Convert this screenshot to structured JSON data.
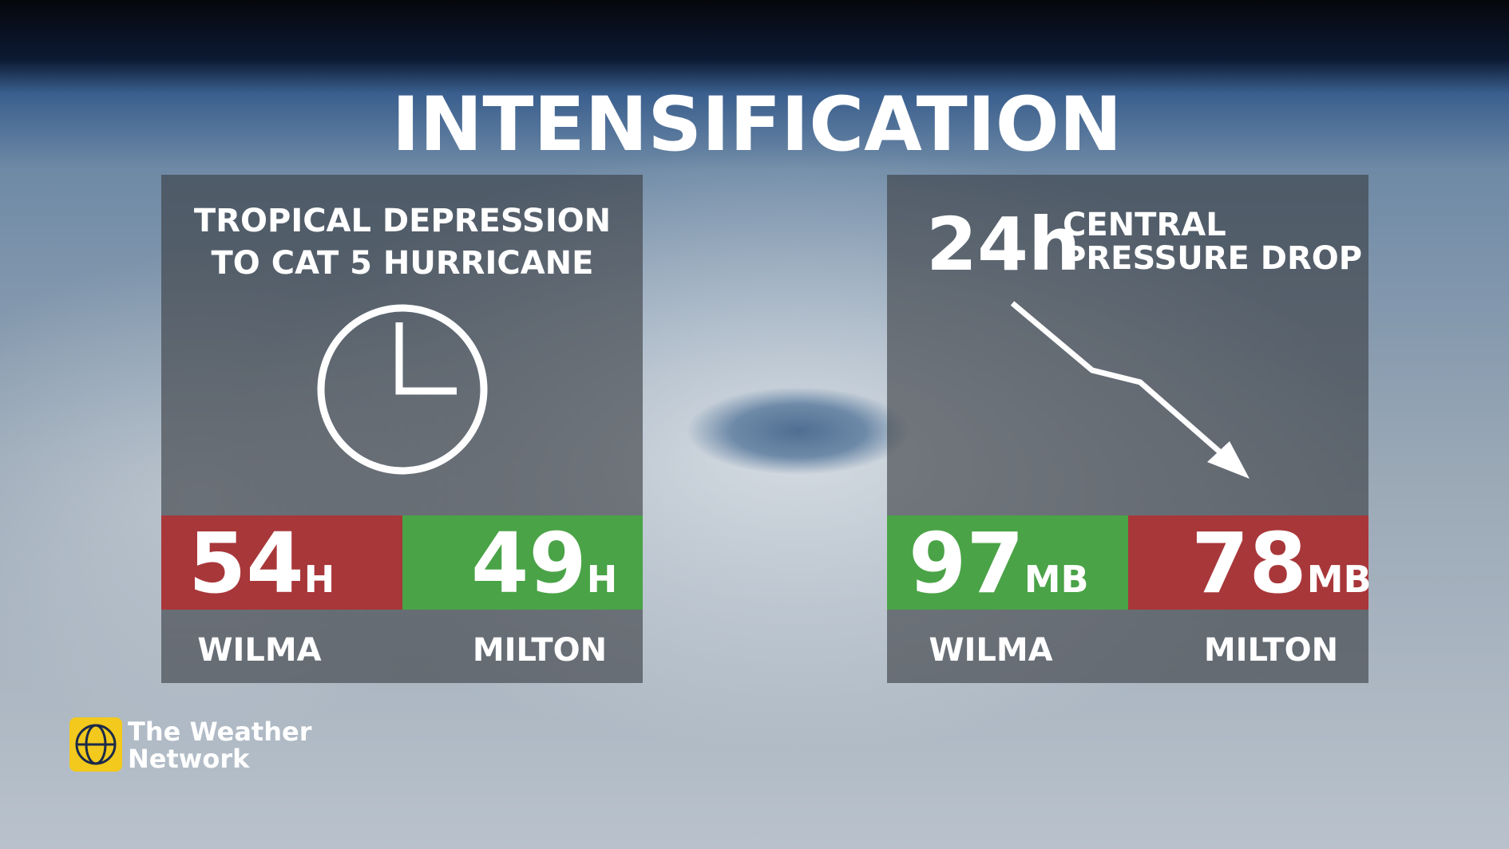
{
  "title": "INTENSIFICATION",
  "panels": [
    {
      "heading": [
        "TROPICAL DEPRESSION",
        "TO CAT 5 HURRICANE"
      ],
      "items": [
        {
          "value": 54,
          "unit": "H",
          "name": "WILMA"
        },
        {
          "value": 49,
          "unit": "H",
          "name": "MILTON"
        }
      ]
    },
    {
      "heading_big": "24h",
      "heading": [
        "CENTRAL",
        "PRESSURE DROP"
      ],
      "items": [
        {
          "value": 97,
          "unit": "MB",
          "name": "WILMA"
        },
        {
          "value": 78,
          "unit": "MB",
          "name": "MILTON"
        }
      ]
    }
  ],
  "logo": [
    "The Weather",
    "Network"
  ]
}
